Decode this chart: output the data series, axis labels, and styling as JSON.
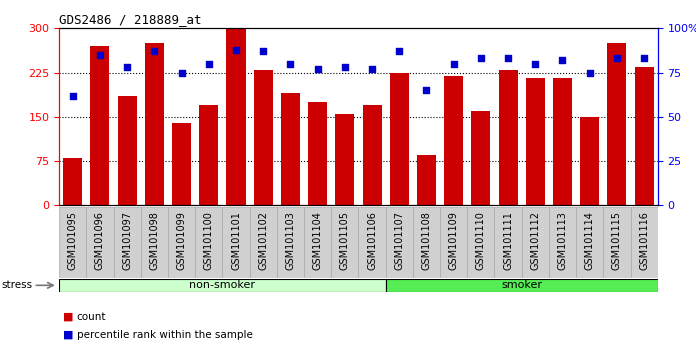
{
  "title": "GDS2486 / 218889_at",
  "categories": [
    "GSM101095",
    "GSM101096",
    "GSM101097",
    "GSM101098",
    "GSM101099",
    "GSM101100",
    "GSM101101",
    "GSM101102",
    "GSM101103",
    "GSM101104",
    "GSM101105",
    "GSM101106",
    "GSM101107",
    "GSM101108",
    "GSM101109",
    "GSM101110",
    "GSM101111",
    "GSM101112",
    "GSM101113",
    "GSM101114",
    "GSM101115",
    "GSM101116"
  ],
  "count_values": [
    80,
    270,
    185,
    275,
    140,
    170,
    300,
    230,
    190,
    175,
    155,
    170,
    225,
    85,
    220,
    160,
    230,
    215,
    215,
    150,
    275,
    235
  ],
  "percentile_values": [
    62,
    85,
    78,
    87,
    75,
    80,
    88,
    87,
    80,
    77,
    78,
    77,
    87,
    65,
    80,
    83,
    83,
    80,
    82,
    75,
    83,
    83
  ],
  "left_ylim": [
    0,
    300
  ],
  "right_ylim": [
    0,
    100
  ],
  "left_yticks": [
    0,
    75,
    150,
    225,
    300
  ],
  "right_yticks": [
    0,
    25,
    50,
    75,
    100
  ],
  "right_yticklabels": [
    "0",
    "25",
    "50",
    "75",
    "100%"
  ],
  "bar_color": "#cc0000",
  "dot_color": "#0000cc",
  "plot_bg_color": "#ffffff",
  "tick_area_bg": "#d0d0d0",
  "non_smoker_count": 12,
  "smoker_count": 10,
  "non_smoker_label": "non-smoker",
  "smoker_label": "smoker",
  "non_smoker_color": "#ccffcc",
  "smoker_color": "#55ee55",
  "stress_label": "stress",
  "dotted_values": [
    75,
    150,
    225
  ],
  "bar_width": 0.7
}
